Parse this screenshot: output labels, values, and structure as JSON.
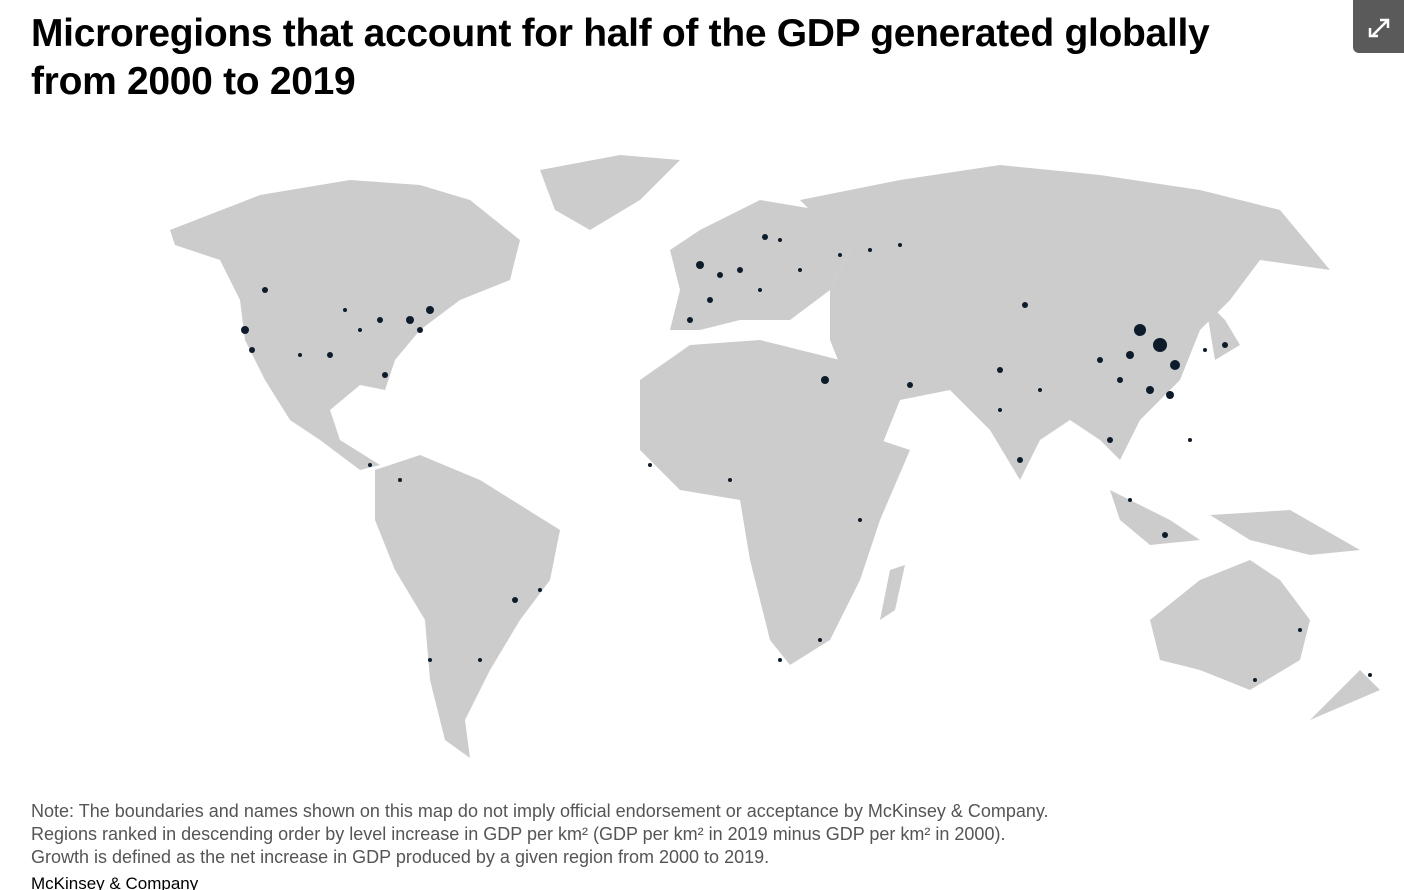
{
  "header": {
    "title": "Microregions that account for half of the GDP generated globally from 2000 to 2019"
  },
  "notes": [
    "Note: The boundaries and names shown on this map do not imply official endorsement or acceptance by McKinsey & Company.",
    "Regions ranked in descending order by level increase in GDP per km² (GDP per km² in 2019 minus GDP per km² in 2000).",
    "Growth is defined as the net increase in GDP produced by a given region from 2000 to 2019."
  ],
  "source": "McKinsey & Company"
}
